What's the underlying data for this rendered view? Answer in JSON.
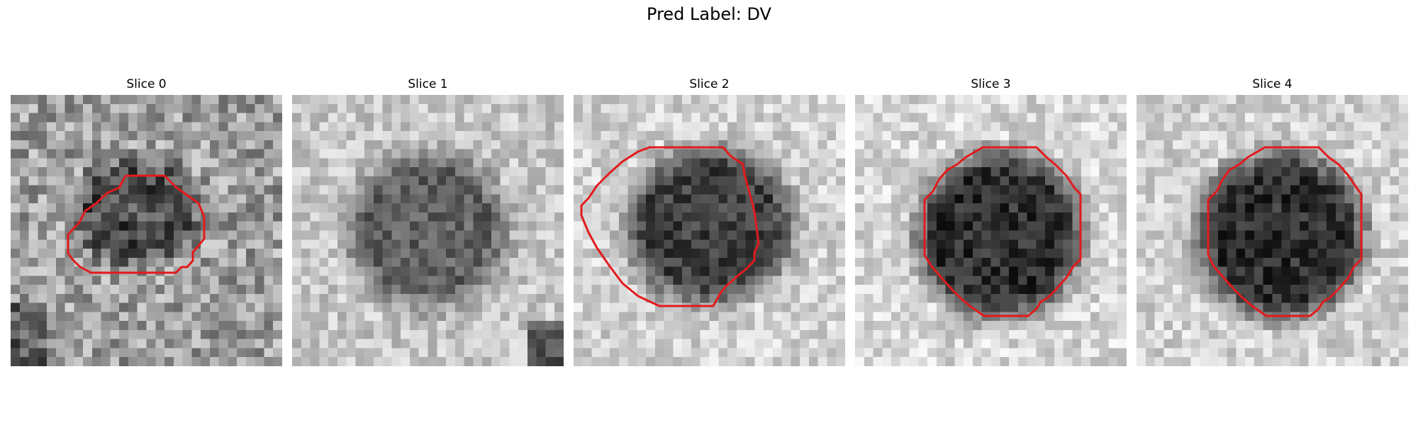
{
  "figure": {
    "title": "Pred Label: DV"
  },
  "panels": [
    {
      "title": "Slice 0"
    },
    {
      "title": "Slice 1"
    },
    {
      "title": "Slice 2"
    },
    {
      "title": "Slice 3"
    },
    {
      "title": "Slice 4"
    }
  ],
  "contour_color": "#e31a1c"
}
